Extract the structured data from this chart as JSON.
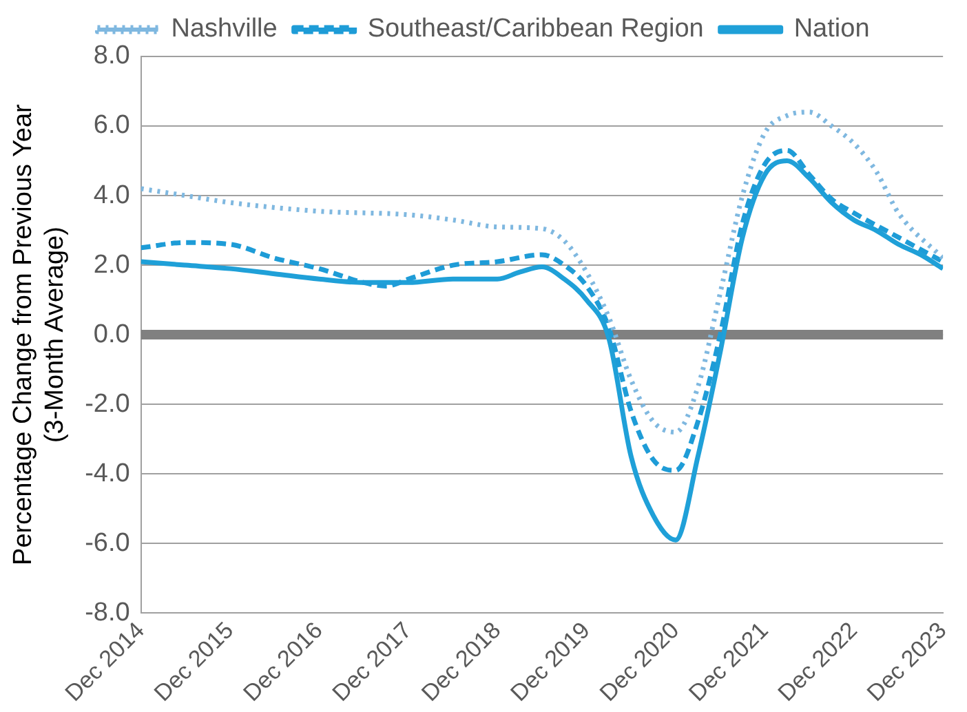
{
  "chart_data": {
    "type": "line",
    "ylabel": "Percentage Change from Previous Year\n(3-Month Average)",
    "xlim": [
      "2014-12",
      "2023-12"
    ],
    "xticks": [
      {
        "value": "2014-12",
        "label": "Dec 2014"
      },
      {
        "value": "2015-12",
        "label": "Dec 2015"
      },
      {
        "value": "2016-12",
        "label": "Dec 2016"
      },
      {
        "value": "2017-12",
        "label": "Dec 2017"
      },
      {
        "value": "2018-12",
        "label": "Dec 2018"
      },
      {
        "value": "2019-12",
        "label": "Dec 2019"
      },
      {
        "value": "2020-12",
        "label": "Dec 2020"
      },
      {
        "value": "2021-12",
        "label": "Dec 2021"
      },
      {
        "value": "2022-12",
        "label": "Dec 2022"
      },
      {
        "value": "2023-12",
        "label": "Dec 2023"
      }
    ],
    "ylim": [
      -8,
      8
    ],
    "yticks": [
      {
        "value": -8,
        "label": "-8.0"
      },
      {
        "value": -6,
        "label": "-6.0"
      },
      {
        "value": -4,
        "label": "-4.0"
      },
      {
        "value": -2,
        "label": "-2.0"
      },
      {
        "value": 0,
        "label": "0.0"
      },
      {
        "value": 2,
        "label": "2.0"
      },
      {
        "value": 4,
        "label": "4.0"
      },
      {
        "value": 6,
        "label": "6.0"
      },
      {
        "value": 8,
        "label": "8.0"
      }
    ],
    "grid": "y",
    "legend": "top",
    "marker": "none",
    "ref_lines": [
      {
        "axis": "y",
        "value": 0,
        "color": "#808080"
      }
    ],
    "series": [
      {
        "name": "Nashville",
        "color": "#7fb8e0",
        "line_style": "dotted",
        "x": [
          "2014-12",
          "2015-06",
          "2015-12",
          "2016-12",
          "2017-12",
          "2018-06",
          "2018-12",
          "2019-06",
          "2019-09",
          "2019-12",
          "2020-03",
          "2020-06",
          "2020-09",
          "2020-12",
          "2021-03",
          "2021-06",
          "2021-09",
          "2021-12",
          "2022-03",
          "2022-06",
          "2022-09",
          "2022-12",
          "2023-03",
          "2023-06",
          "2023-12"
        ],
        "values": [
          4.2,
          4.0,
          3.8,
          3.55,
          3.45,
          3.3,
          3.1,
          3.05,
          2.7,
          1.8,
          0.5,
          -1.3,
          -2.5,
          -2.8,
          -1.5,
          1.2,
          4.0,
          5.8,
          6.3,
          6.4,
          6.0,
          5.5,
          4.7,
          3.5,
          2.2
        ]
      },
      {
        "name": "Southeast/Caribbean Region",
        "color": "#1e9cd7",
        "line_style": "dashed",
        "x": [
          "2014-12",
          "2015-06",
          "2015-12",
          "2016-06",
          "2016-12",
          "2017-06",
          "2017-09",
          "2017-12",
          "2018-06",
          "2018-12",
          "2019-06",
          "2019-09",
          "2019-12",
          "2020-03",
          "2020-06",
          "2020-09",
          "2020-12",
          "2021-03",
          "2021-06",
          "2021-09",
          "2021-12",
          "2022-03",
          "2022-06",
          "2022-09",
          "2022-12",
          "2023-06",
          "2023-12"
        ],
        "values": [
          2.5,
          2.65,
          2.6,
          2.2,
          1.9,
          1.5,
          1.4,
          1.6,
          2.0,
          2.1,
          2.3,
          2.0,
          1.4,
          0.2,
          -2.2,
          -3.6,
          -3.9,
          -2.5,
          0.0,
          3.2,
          4.9,
          5.3,
          4.6,
          3.9,
          3.5,
          2.8,
          2.1
        ]
      },
      {
        "name": "Nation",
        "color": "#1fa0d8",
        "line_style": "solid",
        "x": [
          "2014-12",
          "2015-06",
          "2015-12",
          "2016-06",
          "2016-12",
          "2017-06",
          "2017-12",
          "2018-06",
          "2018-12",
          "2019-03",
          "2019-06",
          "2019-09",
          "2019-12",
          "2020-03",
          "2020-06",
          "2020-09",
          "2020-12",
          "2021-03",
          "2021-06",
          "2021-09",
          "2021-12",
          "2022-03",
          "2022-06",
          "2022-09",
          "2022-12",
          "2023-03",
          "2023-06",
          "2023-09",
          "2023-12"
        ],
        "values": [
          2.1,
          2.0,
          1.9,
          1.75,
          1.6,
          1.5,
          1.5,
          1.6,
          1.6,
          1.8,
          1.95,
          1.6,
          1.0,
          -0.1,
          -3.5,
          -5.2,
          -5.9,
          -3.5,
          -0.5,
          2.8,
          4.6,
          5.0,
          4.5,
          3.8,
          3.3,
          3.0,
          2.6,
          2.3,
          1.9
        ]
      }
    ]
  }
}
